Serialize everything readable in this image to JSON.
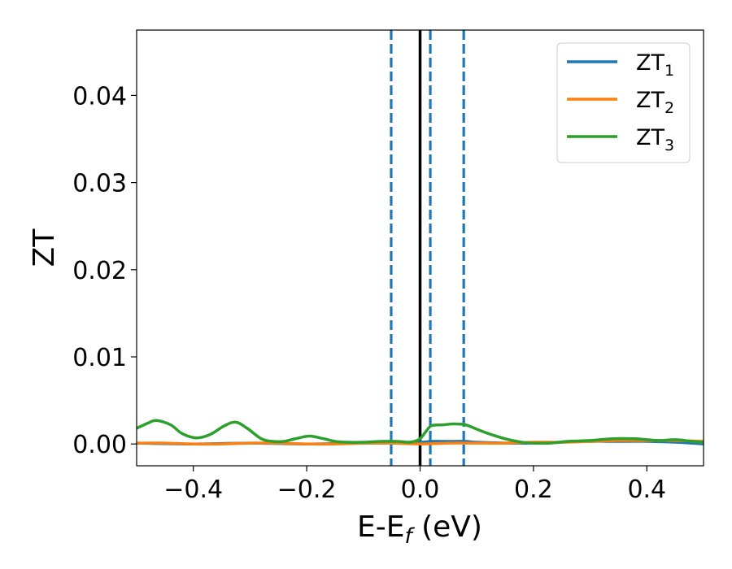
{
  "chart_data": {
    "type": "line",
    "xlabel_main": "E-E",
    "xlabel_sub": "f",
    "xlabel_unit": " (eV)",
    "ylabel": "ZT",
    "xlim": [
      -0.5,
      0.5
    ],
    "ylim": [
      -0.0025,
      0.0475
    ],
    "xticks": [
      -0.4,
      -0.2,
      0.0,
      0.2,
      0.4
    ],
    "xtick_labels": [
      "−0.4",
      "−0.2",
      "0.0",
      "0.2",
      "0.4"
    ],
    "yticks": [
      0.0,
      0.01,
      0.02,
      0.03,
      0.04
    ],
    "ytick_labels": [
      "0.00",
      "0.01",
      "0.02",
      "0.03",
      "0.04"
    ],
    "grid": false,
    "legend_position": "top-right",
    "vlines": [
      {
        "x": 0.0,
        "style": "solid",
        "color": "#000000"
      },
      {
        "x": -0.051,
        "style": "dashed",
        "color": "#1f77b4"
      },
      {
        "x": 0.018,
        "style": "dashed",
        "color": "#1f77b4"
      },
      {
        "x": 0.077,
        "style": "dashed",
        "color": "#1f77b4"
      }
    ],
    "series": [
      {
        "name_main": "ZT",
        "name_sub": "1",
        "color": "#1f77b4",
        "x": [
          -0.5,
          -0.4,
          -0.3,
          -0.2,
          -0.1,
          -0.05,
          0.0,
          0.02,
          0.05,
          0.08,
          0.1,
          0.15,
          0.2,
          0.25,
          0.3,
          0.35,
          0.4,
          0.45,
          0.5
        ],
        "y": [
          0.0001,
          0.0,
          0.0001,
          0.0,
          0.0001,
          0.0001,
          0.0002,
          0.0003,
          0.0003,
          0.0003,
          0.0002,
          0.0001,
          0.0001,
          0.0002,
          0.0003,
          0.0003,
          0.0003,
          0.0002,
          0.0
        ]
      },
      {
        "name_main": "ZT",
        "name_sub": "2",
        "color": "#ff7f0e",
        "x": [
          -0.5,
          -0.45,
          -0.4,
          -0.35,
          -0.3,
          -0.25,
          -0.2,
          -0.15,
          -0.1,
          -0.05,
          0.0,
          0.05,
          0.1,
          0.15,
          0.2,
          0.25,
          0.3,
          0.35,
          0.4,
          0.45,
          0.5
        ],
        "y": [
          0.0001,
          0.0001,
          0.0,
          0.0,
          0.0001,
          0.0001,
          0.0,
          0.0,
          0.0001,
          0.0001,
          0.0,
          0.0001,
          0.0001,
          0.0001,
          0.0002,
          0.0002,
          0.0003,
          0.0004,
          0.0004,
          0.0004,
          0.0003
        ]
      },
      {
        "name_main": "ZT",
        "name_sub": "3",
        "color": "#2ca02c",
        "x": [
          -0.5,
          -0.48,
          -0.465,
          -0.44,
          -0.42,
          -0.395,
          -0.37,
          -0.345,
          -0.325,
          -0.305,
          -0.28,
          -0.26,
          -0.24,
          -0.22,
          -0.195,
          -0.17,
          -0.15,
          -0.13,
          -0.1,
          -0.07,
          -0.04,
          -0.02,
          -0.01,
          0.0,
          0.01,
          0.02,
          0.04,
          0.06,
          0.08,
          0.1,
          0.12,
          0.15,
          0.18,
          0.2,
          0.23,
          0.26,
          0.3,
          0.34,
          0.38,
          0.42,
          0.45,
          0.48,
          0.5
        ],
        "y": [
          0.0018,
          0.0024,
          0.0027,
          0.0022,
          0.0012,
          0.0007,
          0.0011,
          0.0021,
          0.0025,
          0.0018,
          0.0006,
          0.0003,
          0.0003,
          0.0006,
          0.0009,
          0.0006,
          0.0003,
          0.0002,
          0.0002,
          0.0003,
          0.0003,
          0.0002,
          0.0003,
          0.0006,
          0.0014,
          0.0021,
          0.0022,
          0.0023,
          0.0022,
          0.0017,
          0.0012,
          0.0006,
          0.0002,
          0.0001,
          0.0001,
          0.0003,
          0.0004,
          0.0006,
          0.0006,
          0.0004,
          0.0005,
          0.0003,
          0.0002
        ]
      }
    ]
  }
}
